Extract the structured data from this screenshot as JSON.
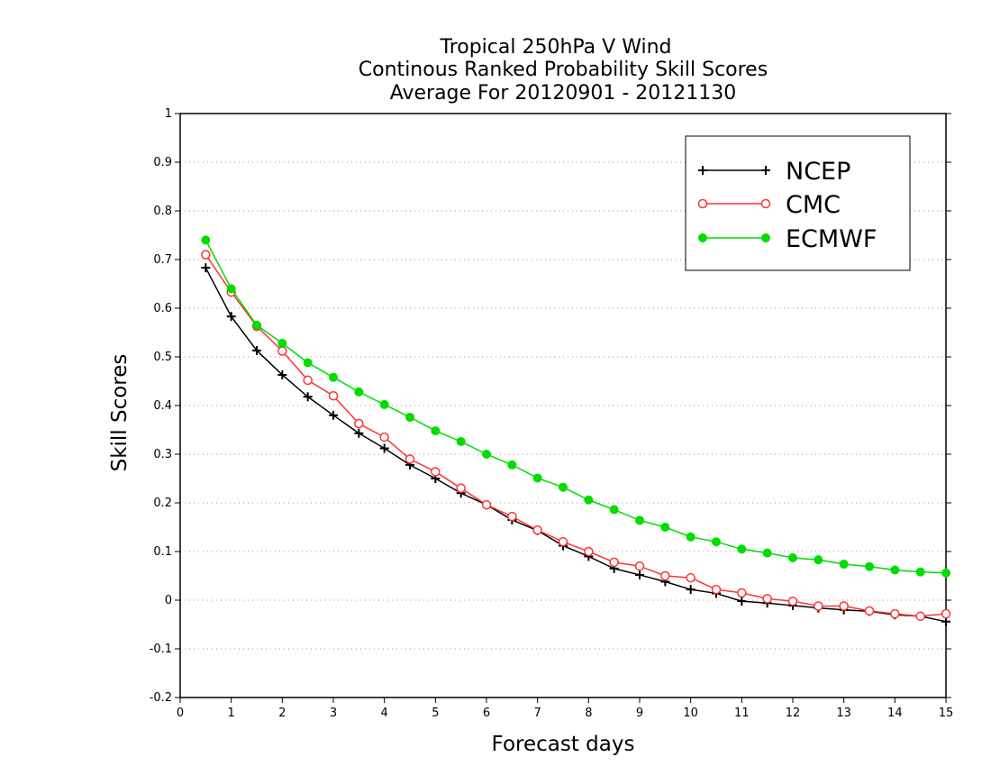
{
  "chart_data": {
    "type": "line",
    "title": [
      "Tropical 250hPa V Wind",
      "Continous Ranked Probability Skill Scores",
      "Average For 20120901 - 20121130"
    ],
    "xlabel": "Forecast days",
    "ylabel": "Skill Scores",
    "xlim": [
      0,
      15
    ],
    "ylim": [
      -0.2,
      1
    ],
    "xticks": [
      "0",
      "1",
      "2",
      "3",
      "4",
      "5",
      "6",
      "7",
      "8",
      "9",
      "10",
      "11",
      "12",
      "13",
      "14",
      "15"
    ],
    "yticks": [
      "-0.2",
      "-0.1",
      "0",
      "0.1",
      "0.2",
      "0.3",
      "0.4",
      "0.5",
      "0.6",
      "0.7",
      "0.8",
      "0.9",
      "1"
    ],
    "grid": "horizontal dotted",
    "legend_position": "top-right",
    "x": [
      0.5,
      1,
      1.5,
      2,
      2.5,
      3,
      3.5,
      4,
      4.5,
      5,
      5.5,
      6,
      6.5,
      7,
      7.5,
      8,
      8.5,
      9,
      9.5,
      10,
      10.5,
      11,
      11.5,
      12,
      12.5,
      13,
      13.5,
      14,
      14.5,
      15
    ],
    "series": [
      {
        "name": "NCEP",
        "color": "#000000",
        "marker": "plus",
        "values": [
          0.683,
          0.583,
          0.513,
          0.463,
          0.418,
          0.38,
          0.343,
          0.312,
          0.278,
          0.25,
          0.22,
          0.196,
          0.165,
          0.143,
          0.112,
          0.09,
          0.065,
          0.052,
          0.038,
          0.022,
          0.014,
          -0.002,
          -0.006,
          -0.011,
          -0.016,
          -0.02,
          -0.023,
          -0.03,
          -0.033,
          -0.044
        ]
      },
      {
        "name": "CMC",
        "color": "#ff3333",
        "marker": "open-circle",
        "values": [
          0.71,
          0.633,
          0.563,
          0.512,
          0.452,
          0.42,
          0.363,
          0.335,
          0.29,
          0.264,
          0.23,
          0.196,
          0.172,
          0.144,
          0.12,
          0.1,
          0.078,
          0.07,
          0.05,
          0.046,
          0.022,
          0.015,
          0.003,
          -0.002,
          -0.012,
          -0.012,
          -0.022,
          -0.028,
          -0.033,
          -0.028
        ]
      },
      {
        "name": "ECMWF",
        "color": "#00dd00",
        "marker": "filled-circle",
        "values": [
          0.74,
          0.64,
          0.565,
          0.528,
          0.488,
          0.458,
          0.428,
          0.402,
          0.376,
          0.348,
          0.326,
          0.3,
          0.278,
          0.251,
          0.232,
          0.206,
          0.186,
          0.164,
          0.15,
          0.13,
          0.12,
          0.105,
          0.097,
          0.087,
          0.083,
          0.074,
          0.069,
          0.062,
          0.058,
          0.056
        ]
      }
    ]
  }
}
